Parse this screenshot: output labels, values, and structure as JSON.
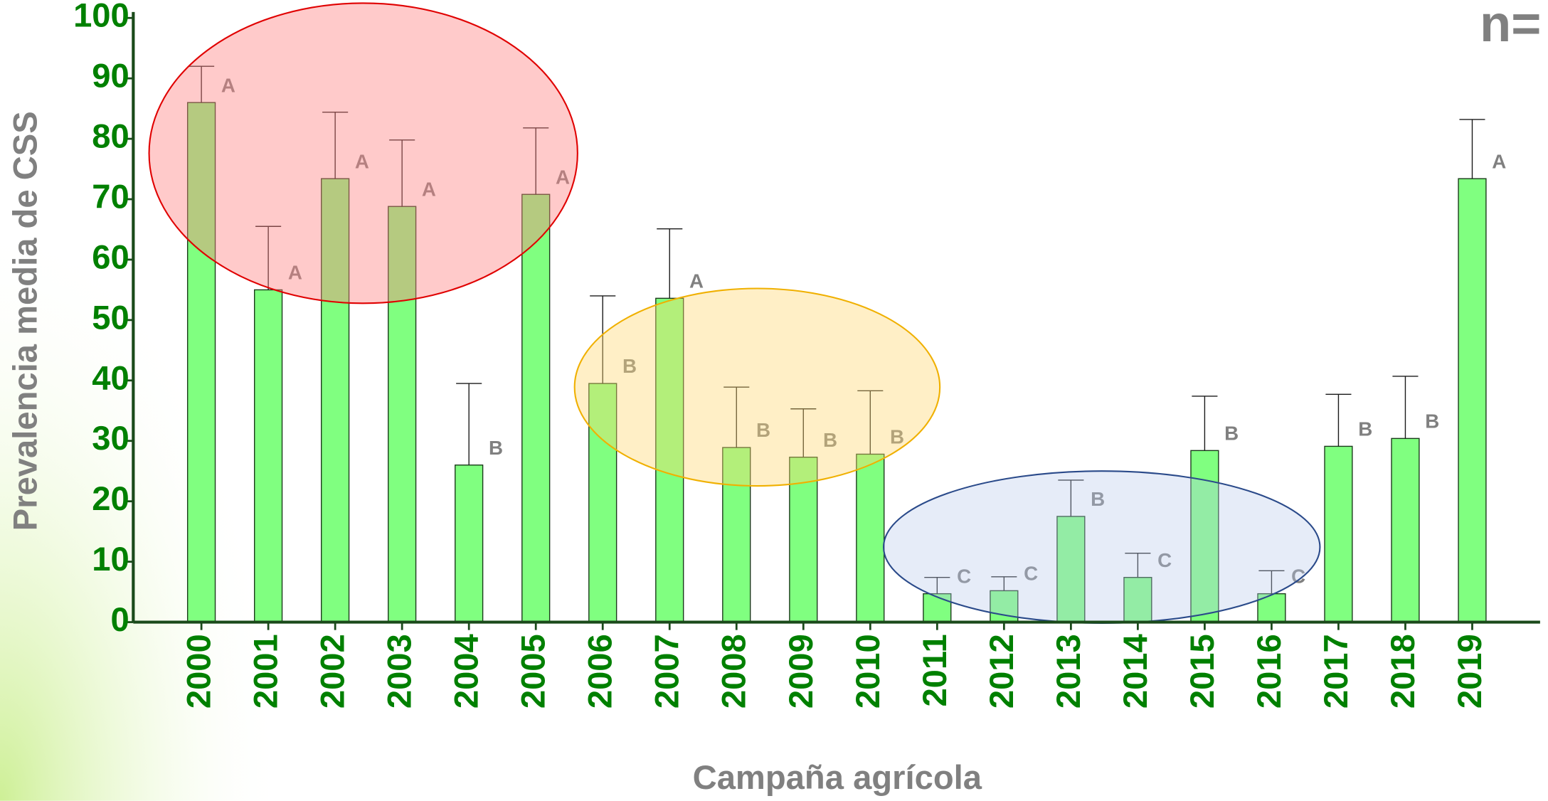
{
  "chart_data": {
    "type": "bar",
    "y_label": "Prevalencia media de CSS",
    "x_label": "Campaña agrícola",
    "corner_text": "n=",
    "categories": [
      "2000",
      "2001",
      "2002",
      "2003",
      "2004",
      "2005",
      "2006",
      "2007",
      "2008",
      "2009",
      "2010",
      "2011",
      "2012",
      "2013",
      "2014",
      "2015",
      "2016",
      "2017",
      "2018",
      "2019"
    ],
    "values": [
      86,
      55,
      73.4,
      68.8,
      26,
      70.8,
      39.5,
      53.6,
      28.9,
      27.3,
      27.8,
      4.7,
      5.2,
      17.5,
      7.4,
      28.4,
      4.7,
      29.1,
      30.4,
      73.4
    ],
    "errors": [
      6,
      10.5,
      11,
      11,
      13.5,
      11,
      14.5,
      11.5,
      10,
      8,
      10.5,
      2.7,
      2.3,
      6,
      4,
      9,
      3.8,
      8.6,
      10.3,
      9.8
    ],
    "letters": [
      "A",
      "A",
      "A",
      "A",
      "B",
      "A",
      "B",
      "A",
      "B",
      "B",
      "B",
      "C",
      "C",
      "B",
      "C",
      "B",
      "C",
      "B",
      "B",
      "A"
    ],
    "color": "#80ff80",
    "ylim": [
      0,
      100
    ],
    "yticks": [
      0,
      10,
      20,
      30,
      40,
      50,
      60,
      70,
      80,
      90,
      100
    ]
  }
}
